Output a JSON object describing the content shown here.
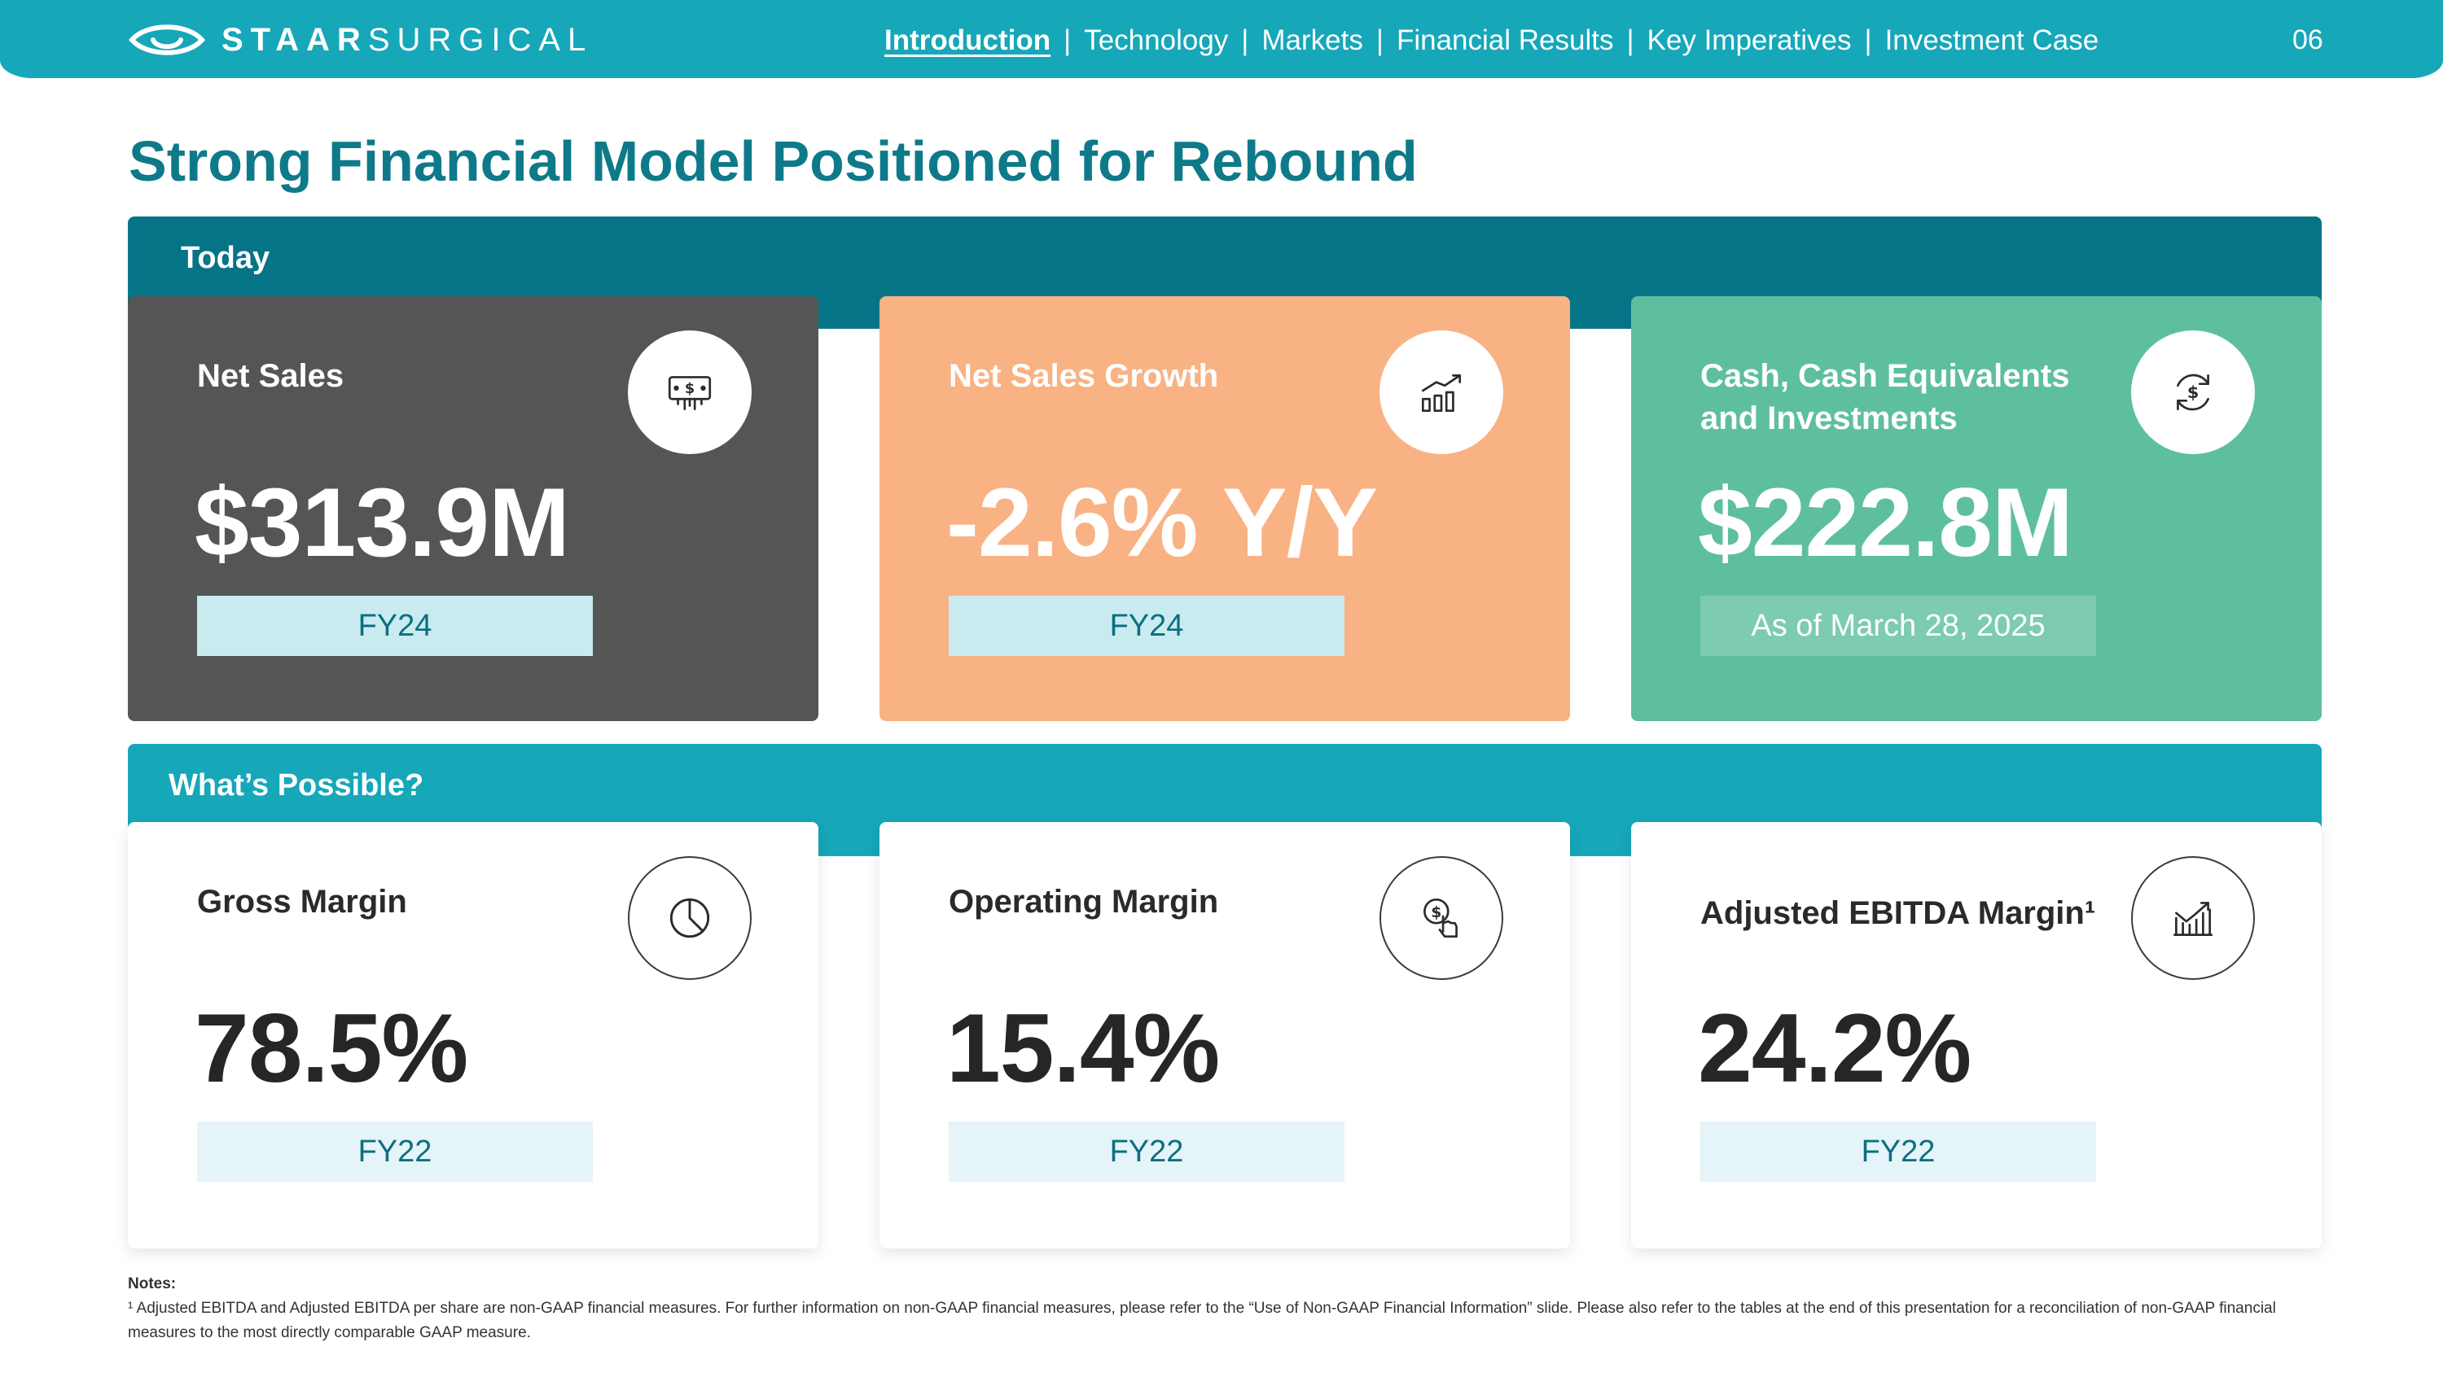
{
  "header": {
    "logo": {
      "bold": "STAAR",
      "light": "SURGICAL"
    },
    "nav": [
      {
        "label": "Introduction",
        "active": true
      },
      {
        "label": "Technology",
        "active": false
      },
      {
        "label": "Markets",
        "active": false
      },
      {
        "label": "Financial Results",
        "active": false
      },
      {
        "label": "Key Imperatives",
        "active": false
      },
      {
        "label": "Investment Case",
        "active": false
      }
    ],
    "separator": "|",
    "page_number": "06"
  },
  "title": "Strong Financial Model Positioned for Rebound",
  "sections": {
    "today": {
      "label": "Today",
      "cards": [
        {
          "label": "Net Sales",
          "value": "$313.9M",
          "tag": "FY24",
          "icon": "money-bill-icon"
        },
        {
          "label": "Net Sales Growth",
          "value": "-2.6% Y/Y",
          "tag": "FY24",
          "icon": "bar-chart-growth-icon"
        },
        {
          "label": "Cash, Cash Equivalents and Investments",
          "value": "$222.8M",
          "tag": "As of March 28, 2025",
          "icon": "dollar-cycle-icon"
        }
      ]
    },
    "possible": {
      "label": "What’s Possible?",
      "cards": [
        {
          "label": "Gross Margin",
          "value": "78.5%",
          "tag": "FY22",
          "icon": "pie-chart-icon"
        },
        {
          "label": "Operating Margin",
          "value": "15.4%",
          "tag": "FY22",
          "icon": "dollar-hand-icon"
        },
        {
          "label": "Adjusted EBITDA Margin¹",
          "value": "24.2%",
          "tag": "FY22",
          "icon": "trend-chart-icon"
        }
      ]
    }
  },
  "notes": {
    "title": "Notes:",
    "text": "¹ Adjusted EBITDA and Adjusted EBITDA per share are non-GAAP financial measures. For further information on non-GAAP financial measures, please refer to the “Use of Non-GAAP Financial Information” slide. Please also refer to the tables at the end of this presentation for a reconciliation of non-GAAP financial measures to the most directly comparable GAAP measure."
  },
  "colors": {
    "header": "#16a7b9",
    "title": "#0e7a89",
    "today_band": "#057487",
    "possible_band": "#16a7b9",
    "card_dark": "#555555",
    "card_orange": "#f9b283",
    "card_green": "#5ebfa0"
  }
}
